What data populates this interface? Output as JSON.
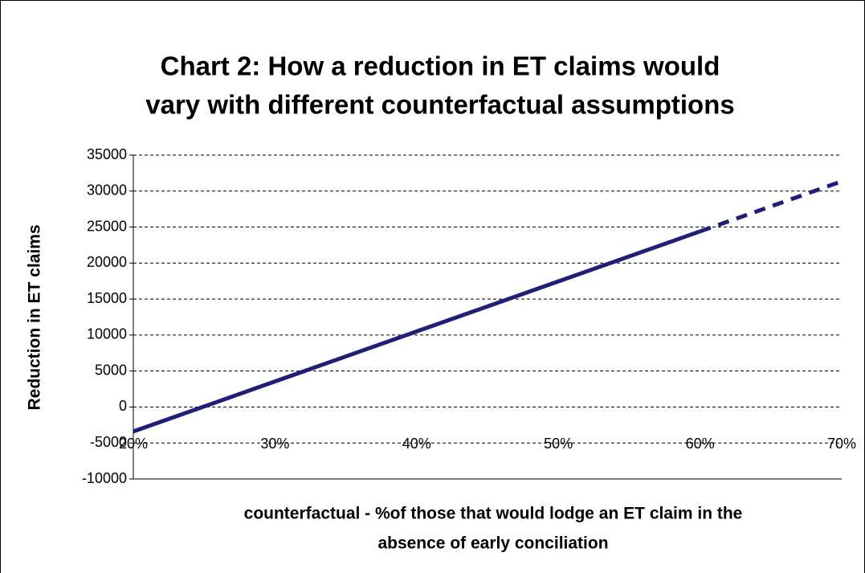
{
  "chart_data": {
    "type": "line",
    "title_lines": [
      "Chart 2: How a reduction in ET claims would",
      "vary with different counterfactual assumptions"
    ],
    "y_label": "Reduction in ET claims",
    "x_label_lines": [
      "counterfactual - %of those that would lodge an ET claim in the",
      "absence of early conciliation"
    ],
    "series": [
      {
        "color": "#1f1f7a",
        "line_style": "solid",
        "x": [
          20,
          30,
          40,
          50,
          60
        ],
        "values": [
          -3400,
          3550,
          10500,
          17450,
          24400
        ]
      },
      {
        "color": "#1f1f7a",
        "line_style": "dashed",
        "x": [
          60,
          70
        ],
        "values": [
          24400,
          31350
        ]
      }
    ],
    "xlim": [
      20,
      70
    ],
    "xticks": [
      {
        "value": 20,
        "label": "20%"
      },
      {
        "value": 30,
        "label": "30%"
      },
      {
        "value": 40,
        "label": "40%"
      },
      {
        "value": 50,
        "label": "50%"
      },
      {
        "value": 60,
        "label": "60%"
      },
      {
        "value": 70,
        "label": "70%"
      }
    ],
    "ylim": [
      -10000,
      35000
    ],
    "yticks": [
      -10000,
      -5000,
      0,
      5000,
      10000,
      15000,
      20000,
      25000,
      30000,
      35000
    ],
    "grid": true
  }
}
